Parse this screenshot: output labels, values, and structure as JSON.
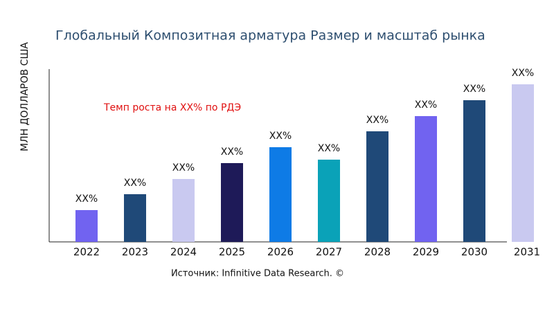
{
  "chart_data": {
    "type": "bar",
    "title": "Глобальный Композитная арматура Размер и масштаб рынка",
    "y_label": "МЛН ДОЛЛАРОВ США",
    "annotation": "Темп роста на XX% по РДЭ",
    "source": "Источник: Infinitive Data Research. ©",
    "categories": [
      "2022",
      "2023",
      "2024",
      "2025",
      "2026",
      "2027",
      "2028",
      "2029",
      "2030",
      "2031"
    ],
    "values": [
      46,
      69,
      91,
      114,
      137,
      119,
      160,
      182,
      205,
      228
    ],
    "value_labels": [
      "XX%",
      "XX%",
      "XX%",
      "XX%",
      "XX%",
      "XX%",
      "XX%",
      "XX%",
      "XX%",
      "XX%"
    ],
    "colors": [
      "#7163f0",
      "#1f4978",
      "#c9c9f0",
      "#1e1a58",
      "#0e7be6",
      "#0aa2b8",
      "#1f4978",
      "#7163f0",
      "#1f4978",
      "#c9c9f0"
    ],
    "ylim": [
      0,
      250
    ]
  }
}
